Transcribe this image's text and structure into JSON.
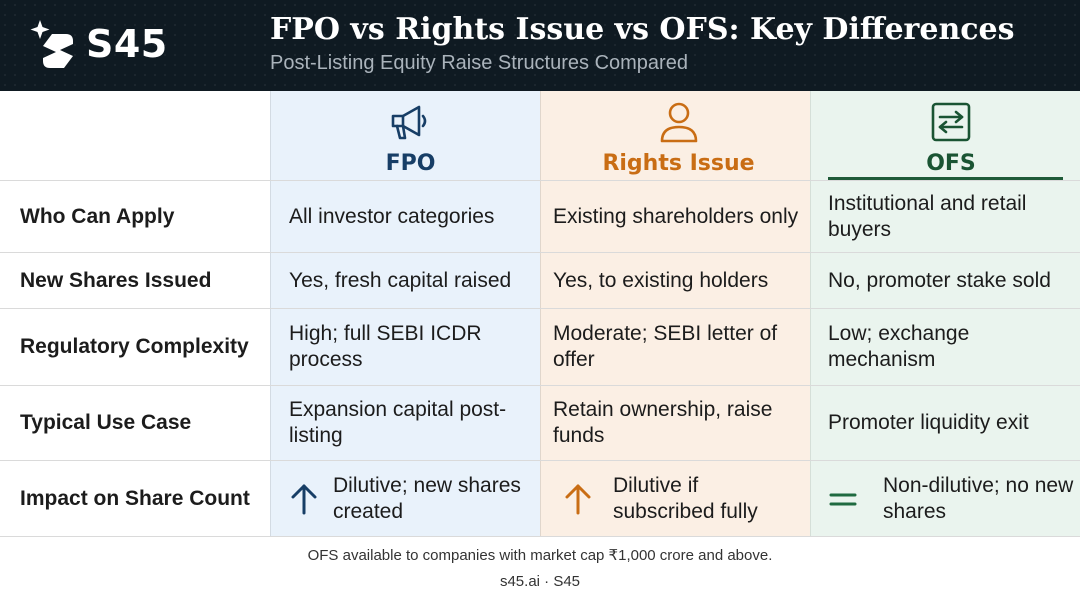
{
  "header": {
    "brand": "S45",
    "title": "FPO vs Rights Issue vs OFS: Key Differences",
    "subtitle": "Post-Listing Equity Raise Structures Compared"
  },
  "columns": [
    {
      "label": "FPO",
      "icon": "megaphone-icon",
      "color": "#173e66"
    },
    {
      "label": "Rights Issue",
      "icon": "person-icon",
      "color": "#c96d14"
    },
    {
      "label": "OFS",
      "icon": "exchange-arrows-icon",
      "color": "#1a5433"
    }
  ],
  "rows": [
    {
      "label": "Who Can Apply",
      "fpo": "All investor categories",
      "rights": "Existing shareholders only",
      "ofs": "Institutional and retail buyers"
    },
    {
      "label": "New Shares Issued",
      "fpo": "Yes, fresh capital raised",
      "rights": "Yes, to existing holders",
      "ofs": "No, promoter stake sold"
    },
    {
      "label": "Regulatory Complexity",
      "fpo": "High; full SEBI ICDR process",
      "rights": "Moderate; SEBI letter of offer",
      "ofs": "Low; exchange mechanism"
    },
    {
      "label": "Typical Use Case",
      "fpo": "Expansion capital post-listing",
      "rights": "Retain ownership, raise funds",
      "ofs": "Promoter liquidity exit"
    },
    {
      "label": "Impact on Share Count",
      "fpo": "Dilutive; new shares created",
      "rights": "Dilutive if subscribed fully",
      "ofs": "Non-dilutive; no new shares",
      "icons": {
        "fpo": "arrow-up-icon",
        "rights": "arrow-up-icon",
        "ofs": "equals-icon"
      }
    }
  ],
  "colors": {
    "header_bg": "#0f1a22",
    "fpo_bg": "#e9f2fb",
    "rights_bg": "#fbefe4",
    "ofs_bg": "#eaf4ee"
  },
  "footer": {
    "note": "OFS available to companies with market cap ₹1,000 crore and above.",
    "brand": "s45.ai · S45"
  }
}
